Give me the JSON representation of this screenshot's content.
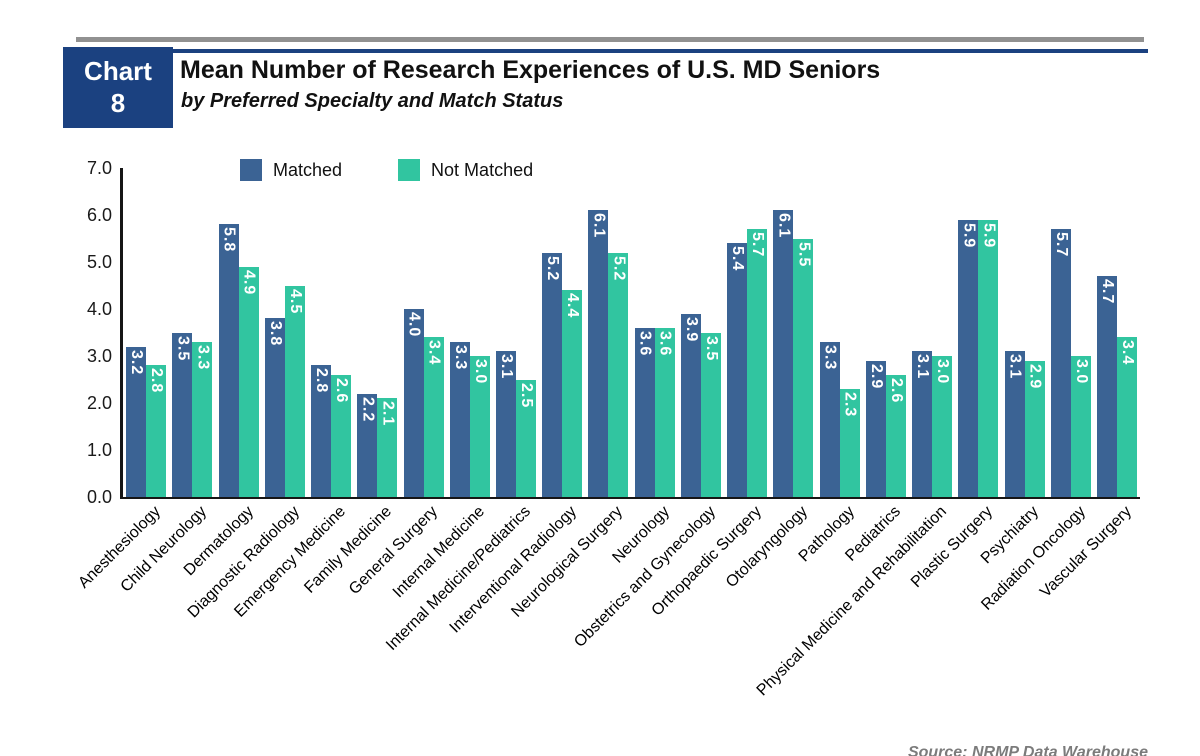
{
  "header": {
    "badge_word": "Chart",
    "badge_number": "8",
    "title": "Mean Number of Research Experiences of U.S. MD Seniors",
    "subtitle": "by Preferred Specialty and Match Status"
  },
  "legend": {
    "matched": "Matched",
    "not_matched": "Not Matched"
  },
  "source": "Source: NRMP Data Warehouse",
  "colors": {
    "matched_blue": "#3B6394",
    "not_matched_teal": "#31C5A0",
    "header_navy": "#1B4180",
    "axis_black": "#161616",
    "top_line_gray": "#7E7E7E",
    "source_gray": "#7B7B7B",
    "value_label_white": "#FFFFFF"
  },
  "y_axis": {
    "ticks": [
      "7.0",
      "6.0",
      "5.0",
      "4.0",
      "3.0",
      "2.0",
      "1.0",
      "0.0"
    ],
    "min": 0.0,
    "max": 7.0,
    "step": 1.0
  },
  "chart_data": {
    "type": "bar",
    "title": "Mean Number of Research Experiences of U.S. MD Seniors",
    "subtitle": "by Preferred Specialty and Match Status",
    "xlabel": "",
    "ylabel": "",
    "ylim": [
      0,
      7
    ],
    "grid": false,
    "legend_position": "top-inside",
    "value_labels": "one-decimal, white bold, rotated 90° inside bar tops",
    "categories": [
      "Anesthesiology",
      "Child Neurology",
      "Dermatology",
      "Diagnostic Radiology",
      "Emergency Medicine",
      "Family Medicine",
      "General Surgery",
      "Internal Medicine",
      "Internal Medicine/Pediatrics",
      "Interventional Radiology",
      "Neurological Surgery",
      "Neurology",
      "Obstetrics and Gynecology",
      "Orthopaedic Surgery",
      "Otolaryngology",
      "Pathology",
      "Pediatrics",
      "Physical Medicine and Rehabilitation",
      "Plastic Surgery",
      "Psychiatry",
      "Radiation Oncology",
      "Vascular Surgery"
    ],
    "series": [
      {
        "name": "Matched",
        "color": "#3B6394",
        "values": [
          3.2,
          3.5,
          5.8,
          3.8,
          2.8,
          2.2,
          4.0,
          3.3,
          3.1,
          5.2,
          6.1,
          3.6,
          3.9,
          5.4,
          6.1,
          3.3,
          2.9,
          3.1,
          5.9,
          3.1,
          5.7,
          4.7
        ]
      },
      {
        "name": "Not Matched",
        "color": "#31C5A0",
        "values": [
          2.8,
          3.3,
          4.9,
          4.5,
          2.6,
          2.1,
          3.4,
          3.0,
          2.5,
          4.4,
          5.2,
          3.6,
          3.5,
          5.7,
          5.5,
          2.3,
          2.6,
          3.0,
          5.9,
          2.9,
          3.0,
          3.4
        ]
      }
    ]
  }
}
